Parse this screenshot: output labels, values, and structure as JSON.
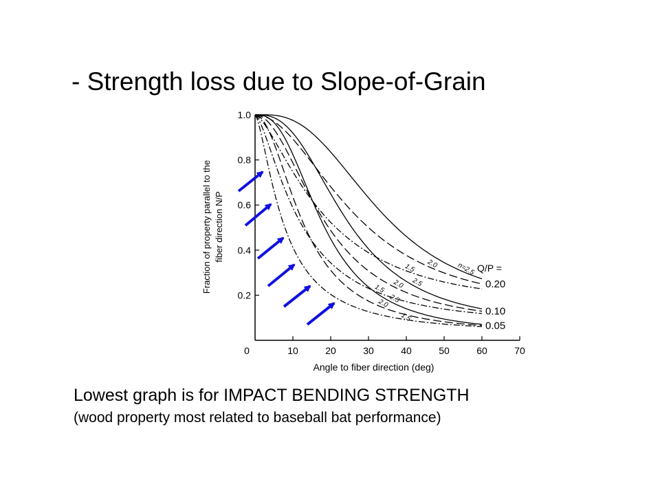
{
  "slide": {
    "title": "-  Strength loss due to Slope-of-Grain",
    "caption_main": "Lowest graph is for IMPACT BENDING STRENGTH",
    "caption_sub": "(wood property most related to baseball bat performance)"
  },
  "colors": {
    "arrow": "#1010e0",
    "ink": "#000000",
    "background": "#ffffff"
  },
  "chart_data": {
    "type": "line",
    "xlabel": "Angle to fiber direction (deg)",
    "ylabel_line1": "Fraction of property parallel to the",
    "ylabel_line2": "fiber direction N/P",
    "xlim": [
      0,
      70
    ],
    "ylim": [
      0,
      1.0
    ],
    "xticks": [
      0,
      10,
      20,
      30,
      40,
      50,
      60,
      70
    ],
    "xtick_labels": [
      "0",
      "10",
      "20",
      "30",
      "40",
      "50",
      "60",
      "70"
    ],
    "yticks": [
      0.2,
      0.4,
      0.6,
      0.8,
      1.0
    ],
    "ytick_labels": [
      "0.2",
      "0.4",
      "0.6",
      "0.8",
      "1.0"
    ],
    "qp_header": "Q/P =",
    "qp_groups": [
      {
        "label": "0.20",
        "value": 0.2
      },
      {
        "label": "0.10",
        "value": 0.1
      },
      {
        "label": "0.05",
        "value": 0.05
      }
    ],
    "series": [
      {
        "name": "n=2.5",
        "label": "n=2.5",
        "qp": 0.2,
        "n": 2.5,
        "dash": "solid"
      },
      {
        "name": "2.0",
        "label": "2.0",
        "qp": 0.2,
        "n": 2.0,
        "dash": "long"
      },
      {
        "name": "1.5",
        "label": "1.5",
        "qp": 0.2,
        "n": 1.5,
        "dash": "dashdot"
      },
      {
        "name": "2.5",
        "label": "2.5",
        "qp": 0.1,
        "n": 2.5,
        "dash": "solid"
      },
      {
        "name": "2.0",
        "label": "2.0",
        "qp": 0.1,
        "n": 2.0,
        "dash": "long"
      },
      {
        "name": "1.5",
        "label": "1.5",
        "qp": 0.1,
        "n": 1.5,
        "dash": "dashdot"
      },
      {
        "name": "2.5",
        "label": "2.5",
        "qp": 0.05,
        "n": 2.5,
        "dash": "solid"
      },
      {
        "name": "2.0",
        "label": "2.0",
        "qp": 0.05,
        "n": 2.0,
        "dash": "long"
      },
      {
        "name": "1.5",
        "label": "1.5",
        "qp": 0.05,
        "n": 1.5,
        "dash": "dashdot"
      }
    ],
    "annotations": [
      "6 blue arrows pointing to the lowest curves"
    ]
  }
}
